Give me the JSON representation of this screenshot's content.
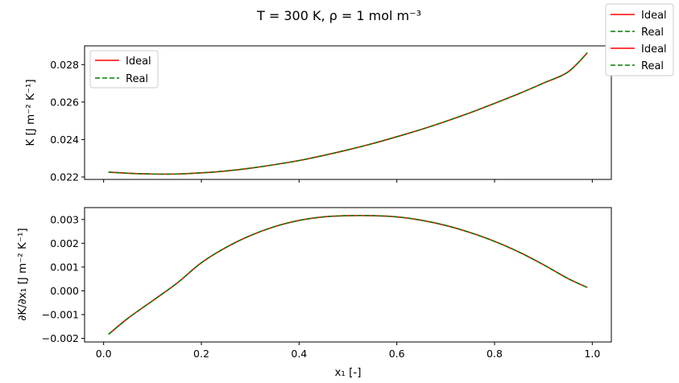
{
  "figure": {
    "title": "T = 300 K, ρ = 1 mol m⁻³",
    "figure_legend": [
      {
        "label": "Ideal",
        "color": "#ff0000",
        "style": "solid"
      },
      {
        "label": "Real",
        "color": "#008000",
        "style": "dashed"
      },
      {
        "label": "Ideal",
        "color": "#ff0000",
        "style": "solid"
      },
      {
        "label": "Real",
        "color": "#008000",
        "style": "dashed"
      }
    ]
  },
  "chart_data": [
    {
      "type": "line",
      "ylabel": "K [J m⁻² K⁻¹]",
      "xlabel": "",
      "xlim": [
        -0.039,
        1.039
      ],
      "ylim": [
        0.02187,
        0.029
      ],
      "yticks": [
        0.022,
        0.024,
        0.026,
        0.028
      ],
      "ytick_labels": [
        "0.022",
        "0.024",
        "0.026",
        "0.028"
      ],
      "xticks": [
        0.0,
        0.2,
        0.4,
        0.6,
        0.8,
        1.0
      ],
      "xtick_labels_shown": false,
      "grid": false,
      "legend": {
        "placement": "upper left",
        "entries": [
          "Ideal",
          "Real"
        ]
      },
      "x": [
        0.01,
        0.05,
        0.1,
        0.15,
        0.2,
        0.25,
        0.3,
        0.35,
        0.4,
        0.45,
        0.5,
        0.55,
        0.6,
        0.65,
        0.7,
        0.75,
        0.8,
        0.85,
        0.9,
        0.95,
        0.99
      ],
      "series": [
        {
          "name": "Ideal",
          "color": "#ff0000",
          "style": "solid",
          "values": [
            0.02226,
            0.0222,
            0.02216,
            0.02216,
            0.02222,
            0.02232,
            0.02247,
            0.02266,
            0.02288,
            0.02315,
            0.02345,
            0.02378,
            0.02415,
            0.02454,
            0.02497,
            0.02543,
            0.02593,
            0.02645,
            0.02701,
            0.0276,
            0.02863
          ]
        },
        {
          "name": "Real",
          "color": "#008000",
          "style": "dashed",
          "values": [
            0.02226,
            0.0222,
            0.02216,
            0.02216,
            0.02222,
            0.02232,
            0.02247,
            0.02266,
            0.02288,
            0.02315,
            0.02345,
            0.02378,
            0.02415,
            0.02454,
            0.02497,
            0.02543,
            0.02593,
            0.02645,
            0.02701,
            0.0276,
            0.02863
          ]
        }
      ]
    },
    {
      "type": "line",
      "ylabel": "∂K/∂x₁ [J m⁻² K⁻¹]",
      "xlabel": "x₁ [-]",
      "xlim": [
        -0.039,
        1.039
      ],
      "ylim": [
        -0.00215,
        0.0035
      ],
      "yticks": [
        -0.002,
        -0.001,
        0.0,
        0.001,
        0.002,
        0.003
      ],
      "ytick_labels": [
        "−0.002",
        "−0.001",
        "0.000",
        "0.001",
        "0.002",
        "0.003"
      ],
      "xticks": [
        0.0,
        0.2,
        0.4,
        0.6,
        0.8,
        1.0
      ],
      "xtick_labels": [
        "0.0",
        "0.2",
        "0.4",
        "0.6",
        "0.8",
        "1.0"
      ],
      "grid": false,
      "x": [
        0.01,
        0.05,
        0.1,
        0.15,
        0.2,
        0.25,
        0.3,
        0.35,
        0.4,
        0.45,
        0.5,
        0.55,
        0.6,
        0.65,
        0.7,
        0.75,
        0.8,
        0.85,
        0.9,
        0.95,
        0.99
      ],
      "series": [
        {
          "name": "Ideal",
          "color": "#ff0000",
          "style": "solid",
          "values": [
            -0.00183,
            -0.00115,
            -0.00042,
            0.00032,
            0.00118,
            0.00182,
            0.00232,
            0.0027,
            0.00296,
            0.00311,
            0.00316,
            0.00316,
            0.00311,
            0.00297,
            0.00275,
            0.00245,
            0.00208,
            0.00163,
            0.0011,
            0.00052,
            0.00014
          ]
        },
        {
          "name": "Real",
          "color": "#008000",
          "style": "dashed",
          "values": [
            -0.00183,
            -0.00115,
            -0.00042,
            0.00032,
            0.00118,
            0.00182,
            0.00232,
            0.0027,
            0.00296,
            0.00311,
            0.00316,
            0.00316,
            0.00311,
            0.00297,
            0.00275,
            0.00245,
            0.00208,
            0.00163,
            0.0011,
            0.00052,
            0.00014
          ]
        }
      ]
    }
  ]
}
